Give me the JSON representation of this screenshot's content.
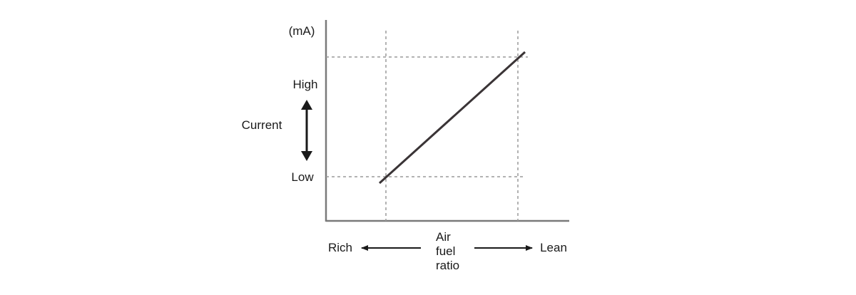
{
  "chart_data": {
    "type": "line",
    "title": "",
    "ylabel": "Current",
    "y_unit": "(mA)",
    "y_ticks": [
      "High",
      "Low"
    ],
    "xlabel": "Air fuel ratio",
    "xlabel_lines": [
      "Air",
      "fuel",
      "ratio"
    ],
    "x_left_label": "Rich",
    "x_right_label": "Lean",
    "grid": "dashed reference lines",
    "series": [
      {
        "x": [
          "Rich",
          "Lean"
        ],
        "y": [
          "Low",
          "High"
        ]
      }
    ],
    "colors": {
      "line": "#3a3436",
      "axis": "#7a7a7a",
      "guide": "#9a9a9a",
      "text": "#1a1a1a"
    }
  }
}
